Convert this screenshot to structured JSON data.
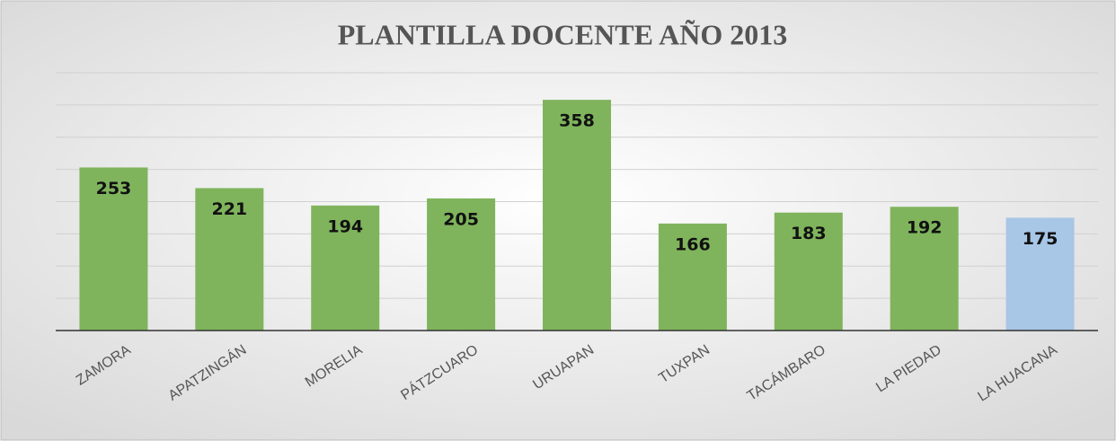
{
  "chart_data": {
    "type": "bar",
    "title": "PLANTILLA DOCENTE AÑO 2013",
    "categories": [
      "ZAMORA",
      "APATZINGÁN",
      "MORELIA",
      "PÁTZCUARO",
      "URUAPAN",
      "TUXPAN",
      "TACÁMBARO",
      "LA PIEDAD",
      "LA HUACANA"
    ],
    "values": [
      253,
      221,
      194,
      205,
      358,
      166,
      183,
      192,
      175
    ],
    "colors": [
      "#7fb45c",
      "#7fb45c",
      "#7fb45c",
      "#7fb45c",
      "#7fb45c",
      "#7fb45c",
      "#7fb45c",
      "#7fb45c",
      "#a8c6e6"
    ],
    "ylim": [
      0,
      400
    ],
    "yticks": [
      0,
      50,
      100,
      150,
      200,
      250,
      300,
      350,
      400
    ],
    "grid": true
  }
}
